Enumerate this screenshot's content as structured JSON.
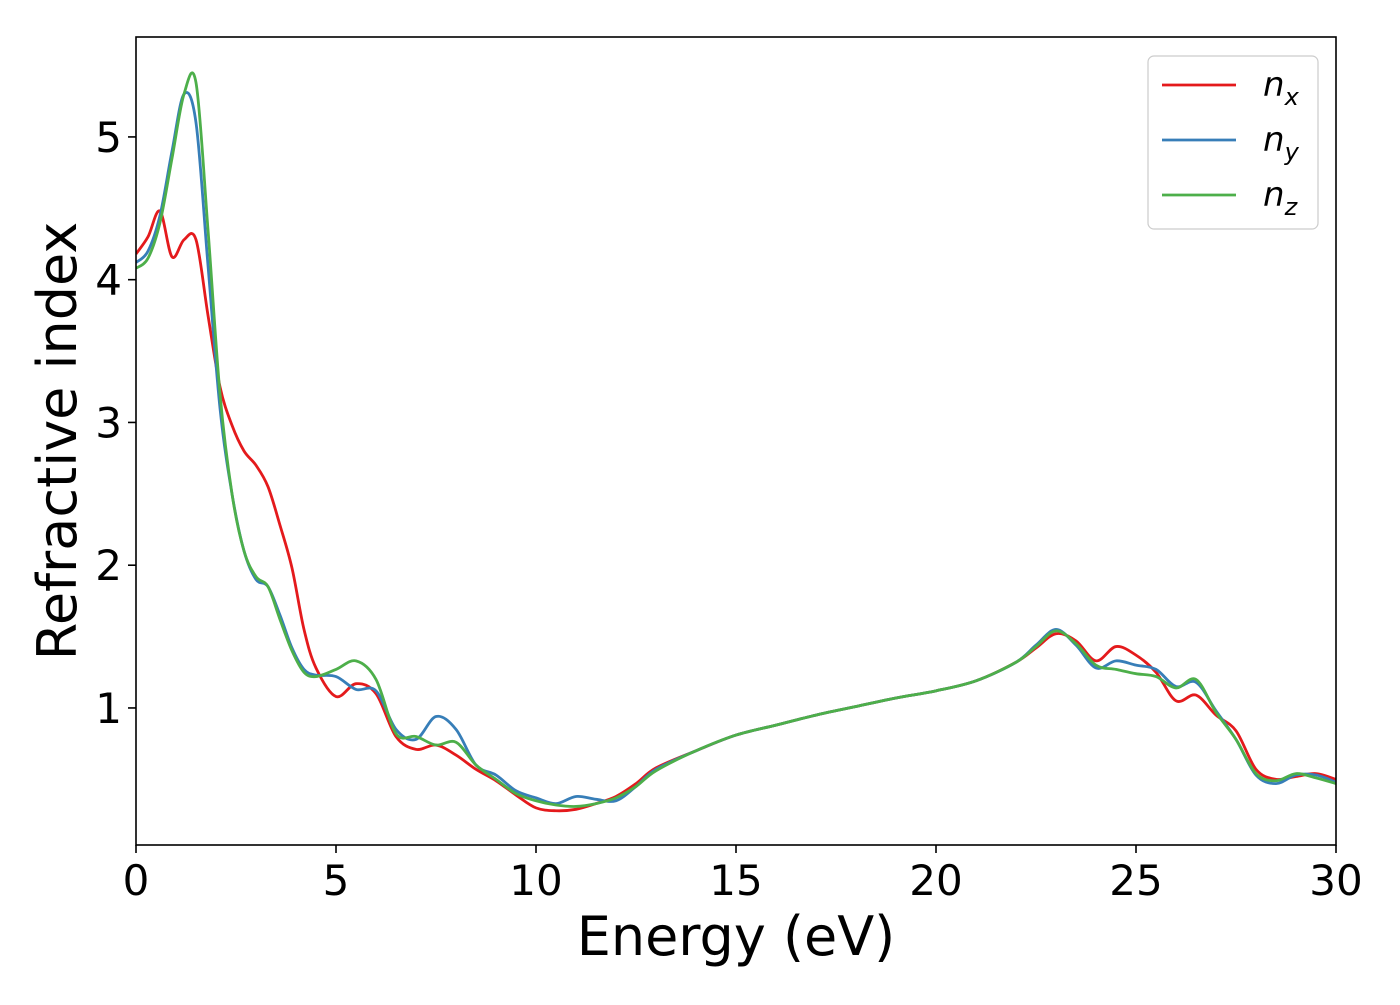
{
  "chart_data": {
    "type": "line",
    "title": "",
    "xlabel": "Energy (eV)",
    "ylabel": "Refractive index",
    "xlim": [
      0,
      30
    ],
    "ylim": [
      0.04,
      5.7
    ],
    "xticks": [
      0,
      5,
      10,
      15,
      20,
      25,
      30
    ],
    "yticks": [
      1,
      2,
      3,
      4,
      5
    ],
    "grid": false,
    "legend": "top-right",
    "series": [
      {
        "name": "n_x",
        "label_base": "n",
        "label_sub": "x",
        "color": "#e41a1c",
        "x": [
          0,
          0.3,
          0.6,
          0.9,
          1.2,
          1.5,
          1.8,
          2.1,
          2.4,
          2.7,
          3.0,
          3.3,
          3.6,
          3.9,
          4.2,
          4.5,
          5.0,
          5.5,
          6.0,
          6.5,
          7.0,
          7.5,
          8.0,
          8.5,
          9.0,
          9.5,
          10.0,
          10.5,
          11.0,
          11.5,
          12.0,
          12.5,
          13.0,
          14.0,
          15.0,
          16.0,
          17.0,
          18.0,
          19.0,
          20.0,
          21.0,
          22.0,
          22.5,
          23.0,
          23.5,
          24.0,
          24.5,
          25.0,
          25.5,
          26.0,
          26.5,
          27.0,
          27.5,
          28.0,
          28.5,
          29.0,
          29.5,
          30.0
        ],
        "y": [
          4.18,
          4.3,
          4.48,
          4.16,
          4.28,
          4.28,
          3.75,
          3.25,
          2.98,
          2.8,
          2.7,
          2.55,
          2.28,
          1.98,
          1.55,
          1.28,
          1.08,
          1.17,
          1.1,
          0.8,
          0.71,
          0.74,
          0.67,
          0.57,
          0.49,
          0.39,
          0.3,
          0.28,
          0.29,
          0.33,
          0.38,
          0.47,
          0.58,
          0.7,
          0.81,
          0.88,
          0.95,
          1.01,
          1.07,
          1.12,
          1.19,
          1.32,
          1.42,
          1.52,
          1.47,
          1.33,
          1.43,
          1.37,
          1.25,
          1.05,
          1.09,
          0.95,
          0.84,
          0.57,
          0.5,
          0.52,
          0.54,
          0.5
        ]
      },
      {
        "name": "n_y",
        "label_base": "n",
        "label_sub": "y",
        "color": "#377eb8",
        "x": [
          0,
          0.3,
          0.6,
          0.9,
          1.2,
          1.5,
          1.8,
          2.1,
          2.4,
          2.7,
          3.0,
          3.3,
          3.6,
          3.9,
          4.2,
          4.5,
          5.0,
          5.5,
          6.0,
          6.5,
          7.0,
          7.5,
          8.0,
          8.5,
          9.0,
          9.5,
          10.0,
          10.5,
          11.0,
          11.5,
          12.0,
          12.5,
          13.0,
          14.0,
          15.0,
          16.0,
          17.0,
          18.0,
          19.0,
          20.0,
          21.0,
          22.0,
          22.5,
          23.0,
          23.5,
          24.0,
          24.5,
          25.0,
          25.5,
          26.0,
          26.5,
          27.0,
          27.5,
          28.0,
          28.5,
          29.0,
          29.5,
          30.0
        ],
        "y": [
          4.12,
          4.2,
          4.45,
          4.9,
          5.3,
          5.1,
          4.1,
          3.1,
          2.5,
          2.1,
          1.9,
          1.85,
          1.65,
          1.42,
          1.27,
          1.23,
          1.22,
          1.13,
          1.12,
          0.85,
          0.78,
          0.94,
          0.85,
          0.6,
          0.53,
          0.42,
          0.37,
          0.33,
          0.38,
          0.36,
          0.35,
          0.45,
          0.57,
          0.7,
          0.81,
          0.88,
          0.95,
          1.01,
          1.07,
          1.12,
          1.19,
          1.32,
          1.44,
          1.55,
          1.44,
          1.28,
          1.33,
          1.3,
          1.27,
          1.15,
          1.18,
          0.98,
          0.78,
          0.53,
          0.47,
          0.53,
          0.53,
          0.48
        ]
      },
      {
        "name": "n_z",
        "label_base": "n",
        "label_sub": "z",
        "color": "#4daf4a",
        "x": [
          0,
          0.3,
          0.6,
          0.9,
          1.2,
          1.5,
          1.8,
          2.1,
          2.4,
          2.7,
          3.0,
          3.3,
          3.6,
          3.9,
          4.2,
          4.5,
          5.0,
          5.5,
          6.0,
          6.5,
          7.0,
          7.5,
          8.0,
          8.5,
          9.0,
          9.5,
          10.0,
          10.5,
          11.0,
          11.5,
          12.0,
          12.5,
          13.0,
          14.0,
          15.0,
          16.0,
          17.0,
          18.0,
          19.0,
          20.0,
          21.0,
          22.0,
          22.5,
          23.0,
          23.5,
          24.0,
          24.5,
          25.0,
          25.5,
          26.0,
          26.5,
          27.0,
          27.5,
          28.0,
          28.5,
          29.0,
          29.5,
          30.0
        ],
        "y": [
          4.08,
          4.15,
          4.4,
          4.85,
          5.3,
          5.38,
          4.35,
          3.2,
          2.5,
          2.1,
          1.92,
          1.85,
          1.62,
          1.4,
          1.25,
          1.22,
          1.27,
          1.33,
          1.2,
          0.82,
          0.8,
          0.74,
          0.76,
          0.6,
          0.5,
          0.4,
          0.35,
          0.32,
          0.31,
          0.33,
          0.37,
          0.45,
          0.56,
          0.7,
          0.81,
          0.88,
          0.95,
          1.01,
          1.07,
          1.12,
          1.19,
          1.32,
          1.43,
          1.54,
          1.45,
          1.3,
          1.27,
          1.24,
          1.22,
          1.14,
          1.2,
          0.97,
          0.78,
          0.54,
          0.49,
          0.54,
          0.51,
          0.47
        ]
      }
    ]
  }
}
